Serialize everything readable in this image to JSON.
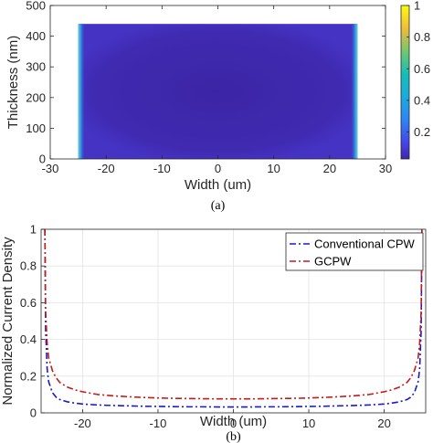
{
  "chart_data": [
    {
      "type": "heatmap",
      "caption": "(a)",
      "xlabel": "Width (um)",
      "ylabel": "Thickness (nm)",
      "xlim": [
        -30,
        30
      ],
      "ylim": [
        0,
        500
      ],
      "xticks": [
        "-30",
        "-20",
        "-10",
        "0",
        "10",
        "20",
        "30"
      ],
      "yticks": [
        "0",
        "100",
        "200",
        "300",
        "400",
        "500"
      ],
      "colorbar_ticks": [
        "0.2",
        "0.4",
        "0.6",
        "0.8",
        "1"
      ],
      "colorbar_range": [
        0.03,
        1
      ],
      "conductor": {
        "x_range": [
          -25,
          25
        ],
        "y_range": [
          0,
          440
        ]
      },
      "grid": false,
      "colors": {
        "low": "#3e26a8",
        "mid": "#2f93ea",
        "high": "#f9fb0e"
      }
    },
    {
      "type": "line",
      "caption": "(b)",
      "xlabel": "Width (um)",
      "ylabel": "Normalized Current Density",
      "xlim": [
        -25.5,
        25.5
      ],
      "ylim": [
        0,
        1
      ],
      "xticks": [
        "-20",
        "-10",
        "0",
        "10",
        "20"
      ],
      "yticks": [
        "0",
        "0.2",
        "0.4",
        "0.6",
        "0.8",
        "1"
      ],
      "grid": true,
      "legend_position": "top-right",
      "x": [
        -25,
        -24.9,
        -24.7,
        -24.5,
        -24,
        -23.5,
        -23,
        -22,
        -21,
        -20,
        -18,
        -16,
        -14,
        -12,
        -10,
        -8,
        -6,
        -4,
        -2,
        0,
        2,
        4,
        6,
        8,
        10,
        12,
        14,
        16,
        18,
        20,
        21,
        22,
        23,
        23.5,
        24,
        24.5,
        24.7,
        24.9,
        25
      ],
      "series": [
        {
          "name": "Conventional CPW",
          "color": "#1a1acc",
          "dash": "dashdot",
          "values": [
            1.0,
            0.45,
            0.24,
            0.17,
            0.11,
            0.085,
            0.072,
            0.06,
            0.053,
            0.048,
            0.043,
            0.04,
            0.038,
            0.036,
            0.035,
            0.034,
            0.033,
            0.033,
            0.032,
            0.032,
            0.032,
            0.033,
            0.033,
            0.034,
            0.035,
            0.036,
            0.038,
            0.04,
            0.043,
            0.048,
            0.053,
            0.06,
            0.072,
            0.085,
            0.11,
            0.17,
            0.24,
            0.45,
            1.0
          ]
        },
        {
          "name": "GCPW",
          "color": "#c41a1a",
          "dash": "dashdot",
          "values": [
            1.0,
            0.55,
            0.38,
            0.3,
            0.23,
            0.19,
            0.165,
            0.14,
            0.125,
            0.115,
            0.1,
            0.093,
            0.088,
            0.084,
            0.081,
            0.079,
            0.078,
            0.077,
            0.076,
            0.076,
            0.076,
            0.077,
            0.078,
            0.079,
            0.081,
            0.084,
            0.088,
            0.093,
            0.1,
            0.115,
            0.125,
            0.14,
            0.165,
            0.19,
            0.23,
            0.3,
            0.38,
            0.55,
            1.0
          ]
        }
      ]
    }
  ]
}
